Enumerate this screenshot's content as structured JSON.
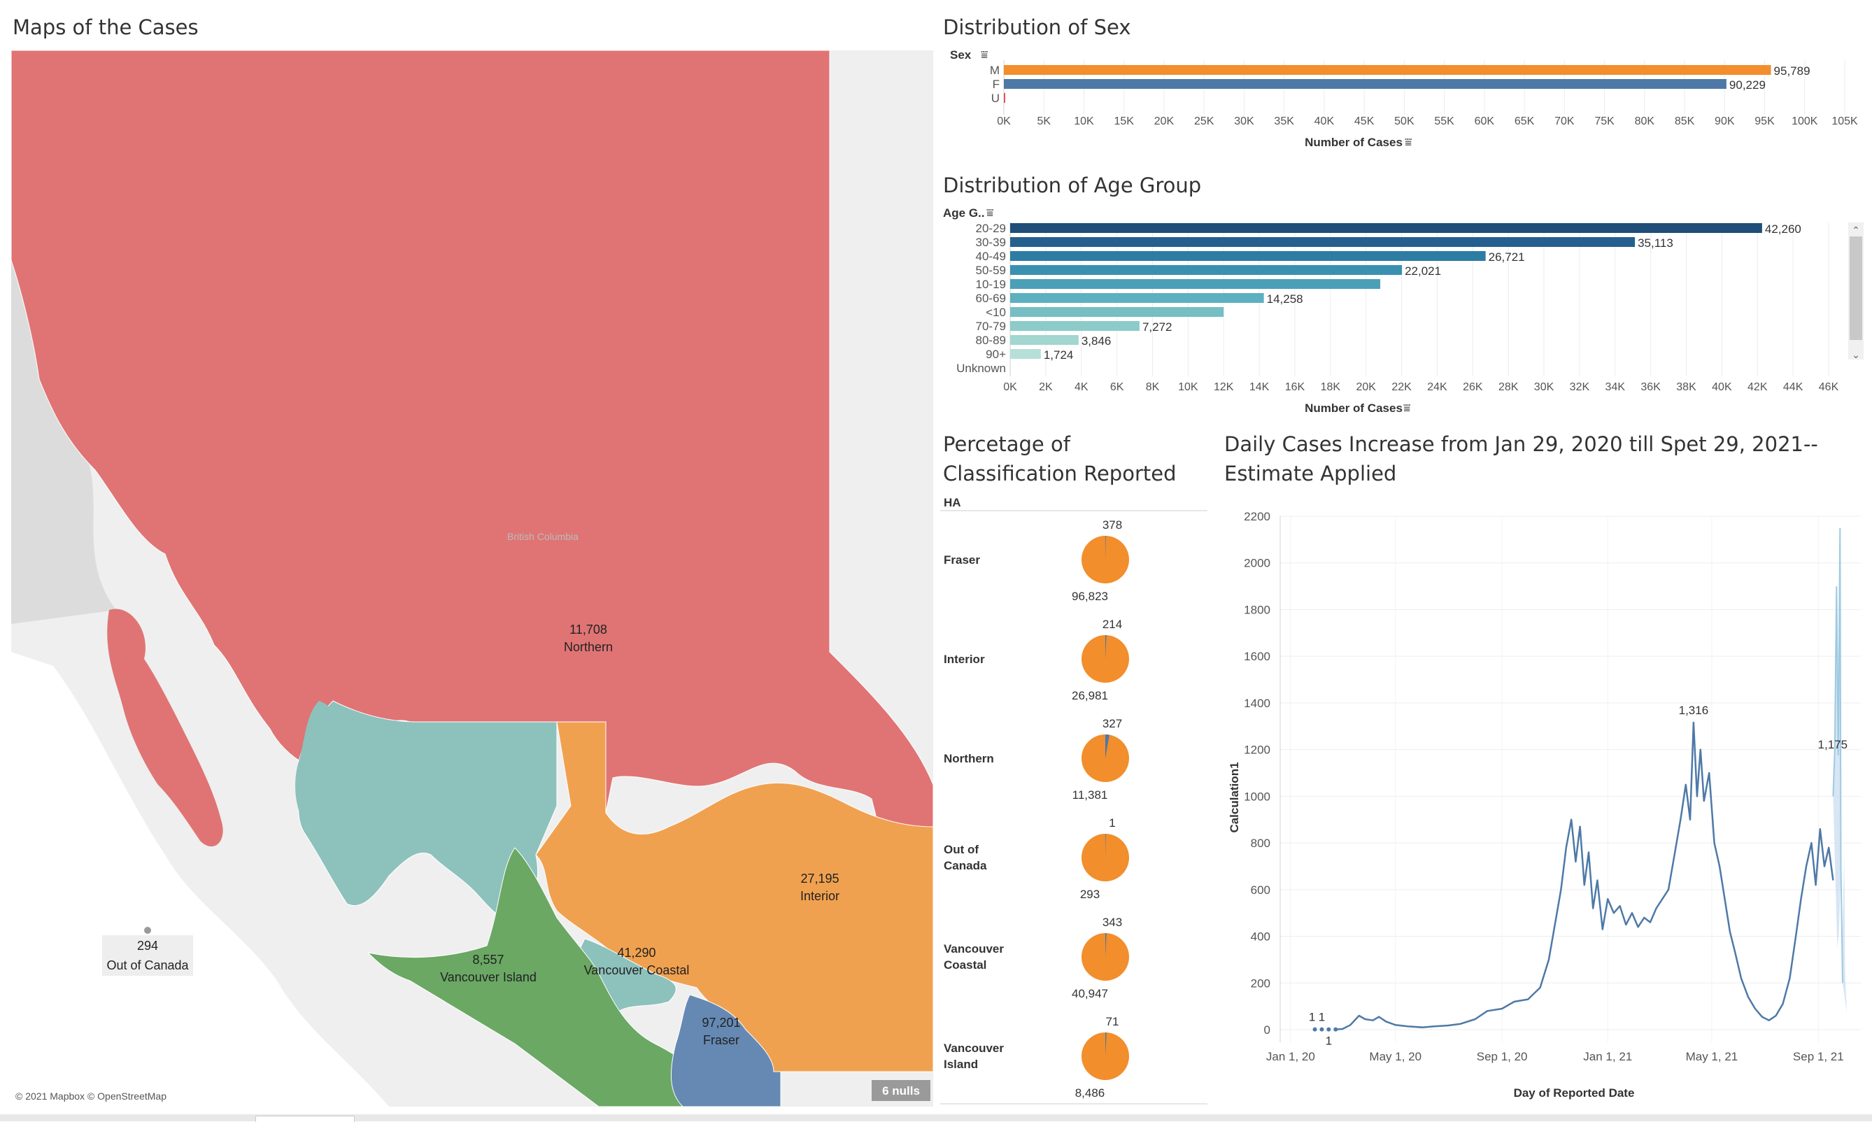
{
  "map_panel": {
    "title": "Maps of the Cases",
    "attribution": "© 2021 Mapbox © OpenStreetMap",
    "nulls_badge": "6 nulls",
    "faint_label": "British Columbia",
    "regions": [
      {
        "name": "Northern",
        "value": "11,708",
        "color": "#e07474"
      },
      {
        "name": "Interior",
        "value": "27,195",
        "color": "#f0a150"
      },
      {
        "name": "Vancouver Coastal",
        "value": "41,290",
        "color": "#8dc1bc"
      },
      {
        "name": "Vancouver Island",
        "value": "8,557",
        "color": "#6aa864"
      },
      {
        "name": "Fraser",
        "value": "97,201",
        "color": "#6589b3"
      },
      {
        "name": "Out of Canada",
        "value": "294",
        "color": "#999999"
      }
    ]
  },
  "sex_panel": {
    "title": "Distribution of Sex",
    "dim_label": "Sex",
    "x_axis_title": "Number of Cases"
  },
  "age_panel": {
    "title": "Distribution of Age Group",
    "dim_label": "Age G..",
    "x_axis_title": "Number of Cases"
  },
  "pie_panel": {
    "title_line1": "Percetage of",
    "title_line2": "Classification Reported",
    "header": "HA",
    "pie_color": "#f28e2b",
    "wedge_color": "#4e79a7"
  },
  "line_panel": {
    "title_line1": "Daily Cases Increase from Jan 29, 2020 till Spet 29, 2021--",
    "title_line2": "Estimate Applied",
    "x_axis_title": "Day of Reported Date",
    "y_axis_title": "Calculation1"
  },
  "chart_data": [
    {
      "type": "bar",
      "title": "Distribution of Sex",
      "xlabel": "Number of Cases",
      "ylabel": "Sex",
      "categories": [
        "M",
        "F",
        "U"
      ],
      "values": [
        95789,
        90229,
        15
      ],
      "value_labels": [
        "95,789",
        "90,229",
        ""
      ],
      "colors": [
        "#f28e2b",
        "#4e79a7",
        "#e15759"
      ],
      "xlim": [
        0,
        105000
      ],
      "x_ticks": [
        "0K",
        "5K",
        "10K",
        "15K",
        "20K",
        "25K",
        "30K",
        "35K",
        "40K",
        "45K",
        "50K",
        "55K",
        "60K",
        "65K",
        "70K",
        "75K",
        "80K",
        "85K",
        "90K",
        "95K",
        "100K",
        "105K"
      ]
    },
    {
      "type": "bar",
      "title": "Distribution of Age Group",
      "xlabel": "Number of Cases",
      "ylabel": "Age G..",
      "categories": [
        "20-29",
        "30-39",
        "40-49",
        "50-59",
        "10-19",
        "60-69",
        "<10",
        "70-79",
        "80-89",
        "90+",
        "Unknown"
      ],
      "values": [
        42260,
        35113,
        26721,
        22021,
        20800,
        14258,
        12000,
        7272,
        3846,
        1724,
        0
      ],
      "value_labels": [
        "42,260",
        "35,113",
        "26,721",
        "22,021",
        "",
        "14,258",
        "",
        "7,272",
        "3,846",
        "1,724",
        ""
      ],
      "colors": [
        "#1f4e79",
        "#245f8e",
        "#2d7ca3",
        "#3a90b0",
        "#4ba0b8",
        "#5db0bf",
        "#74bec4",
        "#8ccbc9",
        "#a2d6d0",
        "#b6dfd8",
        "#cfe9e3"
      ],
      "xlim": [
        0,
        46000
      ],
      "x_ticks": [
        "0K",
        "2K",
        "4K",
        "6K",
        "8K",
        "10K",
        "12K",
        "14K",
        "16K",
        "18K",
        "20K",
        "22K",
        "24K",
        "26K",
        "28K",
        "30K",
        "32K",
        "34K",
        "36K",
        "38K",
        "40K",
        "42K",
        "44K",
        "46K"
      ]
    },
    {
      "type": "pie",
      "title": "Percetage of Classification Reported",
      "rows": [
        {
          "name": "Fraser",
          "lab": 96823,
          "epi": 378,
          "lab_label": "96,823",
          "epi_label": "378"
        },
        {
          "name": "Interior",
          "lab": 26981,
          "epi": 214,
          "lab_label": "26,981",
          "epi_label": "214"
        },
        {
          "name": "Northern",
          "lab": 11381,
          "epi": 327,
          "lab_label": "11,381",
          "epi_label": "327"
        },
        {
          "name": "Out of Canada",
          "lab": 293,
          "epi": 1,
          "lab_label": "293",
          "epi_label": "1"
        },
        {
          "name": "Vancouver Coastal",
          "lab": 40947,
          "epi": 343,
          "lab_label": "40,947",
          "epi_label": "343"
        },
        {
          "name": "Vancouver Island",
          "lab": 8486,
          "epi": 71,
          "lab_label": "8,486",
          "epi_label": "71"
        }
      ]
    },
    {
      "type": "line",
      "title": "Daily Cases Increase from Jan 29, 2020 till Spet 29, 2021--Estimate Applied",
      "xlabel": "Day of Reported Date",
      "ylabel": "Calculation1",
      "ylim": [
        0,
        2200
      ],
      "y_ticks": [
        0,
        200,
        400,
        600,
        800,
        1000,
        1200,
        1400,
        1600,
        1800,
        2000,
        2200
      ],
      "x_ticks": [
        {
          "date": "2020-01-01",
          "label": "Jan 1, 20"
        },
        {
          "date": "2020-05-01",
          "label": "May 1, 20"
        },
        {
          "date": "2020-09-01",
          "label": "Sep 1, 20"
        },
        {
          "date": "2021-01-01",
          "label": "Jan 1, 21"
        },
        {
          "date": "2021-05-01",
          "label": "May 1, 21"
        },
        {
          "date": "2021-09-01",
          "label": "Sep 1, 21"
        }
      ],
      "xlim": [
        "2019-12-20",
        "2021-10-20"
      ],
      "points": [
        [
          "2020-01-29",
          1
        ],
        [
          "2020-02-06",
          1
        ],
        [
          "2020-02-14",
          1
        ],
        [
          "2020-02-22",
          1
        ],
        [
          "2020-03-01",
          3
        ],
        [
          "2020-03-10",
          20
        ],
        [
          "2020-03-20",
          60
        ],
        [
          "2020-03-27",
          45
        ],
        [
          "2020-04-05",
          40
        ],
        [
          "2020-04-12",
          55
        ],
        [
          "2020-04-20",
          35
        ],
        [
          "2020-05-01",
          20
        ],
        [
          "2020-05-15",
          14
        ],
        [
          "2020-06-01",
          10
        ],
        [
          "2020-06-15",
          14
        ],
        [
          "2020-07-01",
          18
        ],
        [
          "2020-07-15",
          25
        ],
        [
          "2020-08-01",
          45
        ],
        [
          "2020-08-15",
          80
        ],
        [
          "2020-09-01",
          90
        ],
        [
          "2020-09-15",
          120
        ],
        [
          "2020-10-01",
          130
        ],
        [
          "2020-10-15",
          180
        ],
        [
          "2020-10-25",
          300
        ],
        [
          "2020-11-01",
          450
        ],
        [
          "2020-11-08",
          600
        ],
        [
          "2020-11-14",
          780
        ],
        [
          "2020-11-20",
          900
        ],
        [
          "2020-11-25",
          720
        ],
        [
          "2020-11-30",
          870
        ],
        [
          "2020-12-05",
          620
        ],
        [
          "2020-12-10",
          760
        ],
        [
          "2020-12-15",
          520
        ],
        [
          "2020-12-20",
          640
        ],
        [
          "2020-12-26",
          430
        ],
        [
          "2021-01-01",
          560
        ],
        [
          "2021-01-08",
          500
        ],
        [
          "2021-01-15",
          530
        ],
        [
          "2021-01-22",
          450
        ],
        [
          "2021-01-29",
          500
        ],
        [
          "2021-02-05",
          440
        ],
        [
          "2021-02-12",
          480
        ],
        [
          "2021-02-19",
          460
        ],
        [
          "2021-02-26",
          520
        ],
        [
          "2021-03-05",
          560
        ],
        [
          "2021-03-12",
          600
        ],
        [
          "2021-03-19",
          750
        ],
        [
          "2021-03-26",
          900
        ],
        [
          "2021-04-01",
          1050
        ],
        [
          "2021-04-06",
          900
        ],
        [
          "2021-04-10",
          1316
        ],
        [
          "2021-04-14",
          1000
        ],
        [
          "2021-04-18",
          1200
        ],
        [
          "2021-04-22",
          980
        ],
        [
          "2021-04-28",
          1100
        ],
        [
          "2021-05-04",
          800
        ],
        [
          "2021-05-10",
          700
        ],
        [
          "2021-05-16",
          560
        ],
        [
          "2021-05-22",
          420
        ],
        [
          "2021-05-28",
          330
        ],
        [
          "2021-06-04",
          220
        ],
        [
          "2021-06-12",
          140
        ],
        [
          "2021-06-20",
          90
        ],
        [
          "2021-06-28",
          55
        ],
        [
          "2021-07-06",
          40
        ],
        [
          "2021-07-14",
          60
        ],
        [
          "2021-07-22",
          110
        ],
        [
          "2021-07-30",
          220
        ],
        [
          "2021-08-06",
          400
        ],
        [
          "2021-08-12",
          560
        ],
        [
          "2021-08-18",
          700
        ],
        [
          "2021-08-24",
          800
        ],
        [
          "2021-08-29",
          620
        ],
        [
          "2021-09-03",
          860
        ],
        [
          "2021-09-08",
          700
        ],
        [
          "2021-09-13",
          780
        ],
        [
          "2021-09-18",
          640
        ]
      ],
      "estimate": [
        [
          "2021-09-18",
          1000
        ],
        [
          "2021-09-20",
          1200
        ],
        [
          "2021-09-22",
          1900
        ],
        [
          "2021-09-24",
          1175
        ],
        [
          "2021-09-26",
          2150
        ],
        [
          "2021-09-27",
          700
        ],
        [
          "2021-09-29",
          200
        ]
      ],
      "annotations": [
        {
          "date": "2020-01-29",
          "value": 1,
          "label": "1"
        },
        {
          "date": "2020-02-06",
          "value": 1,
          "label": "1"
        },
        {
          "date": "2020-02-14",
          "value": 1,
          "label": "1"
        },
        {
          "date": "2021-04-10",
          "value": 1316,
          "label": "1,316"
        },
        {
          "date": "2021-09-24",
          "value": 1175,
          "label": "1,175"
        }
      ]
    }
  ]
}
